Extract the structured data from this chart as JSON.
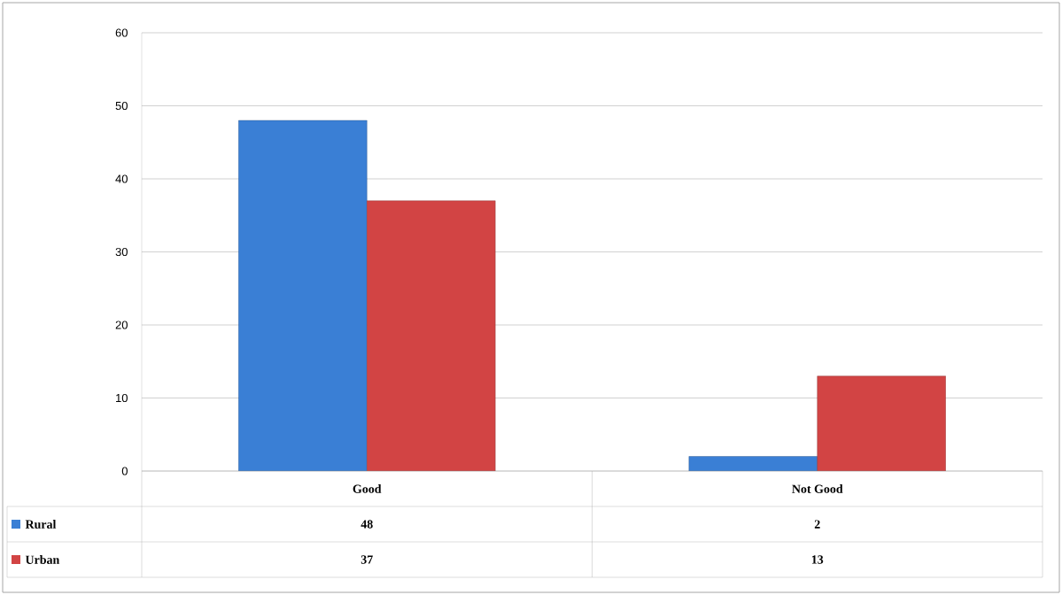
{
  "chart_data": {
    "type": "bar",
    "categories": [
      "Good",
      "Not Good"
    ],
    "series": [
      {
        "name": "Rural",
        "color": "#3a7fd5",
        "values": [
          48,
          2
        ]
      },
      {
        "name": "Urban",
        "color": "#d24444",
        "values": [
          37,
          13
        ]
      }
    ],
    "ylim": [
      0,
      60
    ],
    "yticks": [
      0,
      10,
      20,
      30,
      40,
      50,
      60
    ],
    "grid": "y",
    "legend": "bottom",
    "data_labels": true
  }
}
